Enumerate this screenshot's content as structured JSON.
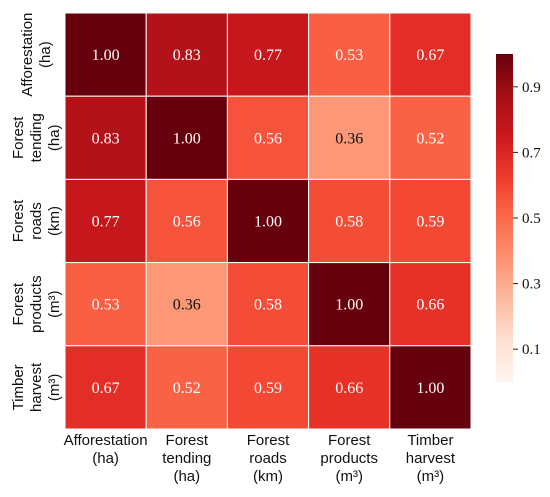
{
  "chart_data": {
    "type": "heatmap",
    "title": "",
    "xlabel": "",
    "ylabel": "",
    "row_labels": [
      [
        "Afforestation",
        "(ha)"
      ],
      [
        "Forest",
        "tending",
        "(ha)"
      ],
      [
        "Forest",
        "roads",
        "(km)"
      ],
      [
        "Forest",
        "products",
        "(m³)"
      ],
      [
        "Timber",
        "harvest",
        "(m³)"
      ]
    ],
    "col_labels": [
      [
        "Afforestation",
        "(ha)"
      ],
      [
        "Forest",
        "tending",
        "(ha)"
      ],
      [
        "Forest",
        "roads",
        "(km)"
      ],
      [
        "Forest",
        "products",
        "(m³)"
      ],
      [
        "Timber",
        "harvest",
        "(m³)"
      ]
    ],
    "values": [
      [
        1.0,
        0.83,
        0.77,
        0.53,
        0.67
      ],
      [
        0.83,
        1.0,
        0.56,
        0.36,
        0.52
      ],
      [
        0.77,
        0.56,
        1.0,
        0.58,
        0.59
      ],
      [
        0.53,
        0.36,
        0.58,
        1.0,
        0.66
      ],
      [
        0.67,
        0.52,
        0.59,
        0.66,
        1.0
      ]
    ],
    "value_format": "0.00",
    "colormap": "Reds",
    "color_range": [
      0.0,
      1.0
    ],
    "colorbar": {
      "ticks": [
        0.1,
        0.3,
        0.5,
        0.7,
        0.9
      ],
      "tick_labels": [
        "0.1",
        "0.3",
        "0.5",
        "0.7",
        "0.9"
      ],
      "placement": "right"
    },
    "grid_lines": true
  }
}
